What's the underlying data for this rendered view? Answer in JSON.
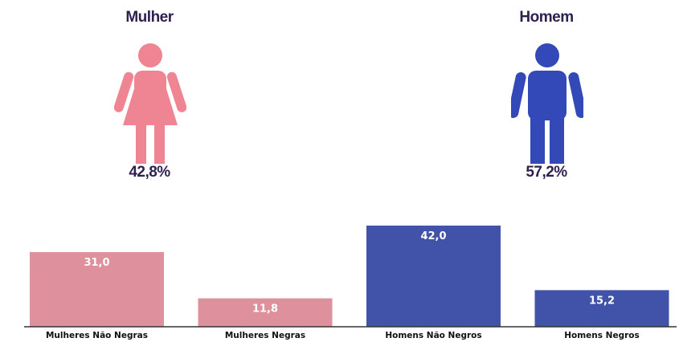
{
  "female": {
    "title": "Mulher",
    "percent": "42,8%",
    "color": "#ef8593",
    "icon": "woman-icon"
  },
  "male": {
    "title": "Homem",
    "percent": "57,2%",
    "color": "#3349b8",
    "icon": "man-icon"
  },
  "chart_data": {
    "type": "bar",
    "categories": [
      "Mulheres Não Negras",
      "Mulheres Negras",
      "Homens Não Negros",
      "Homens Negros"
    ],
    "values": [
      31.0,
      11.8,
      42.0,
      15.2
    ],
    "value_labels": [
      "31,0",
      "11,8",
      "42,0",
      "15,2"
    ],
    "colors": [
      "#de909d",
      "#de909d",
      "#4153a8",
      "#4153a8"
    ],
    "title": "",
    "xlabel": "",
    "ylabel": "",
    "ylim": [
      0,
      42
    ],
    "grid": false,
    "legend": "none"
  }
}
